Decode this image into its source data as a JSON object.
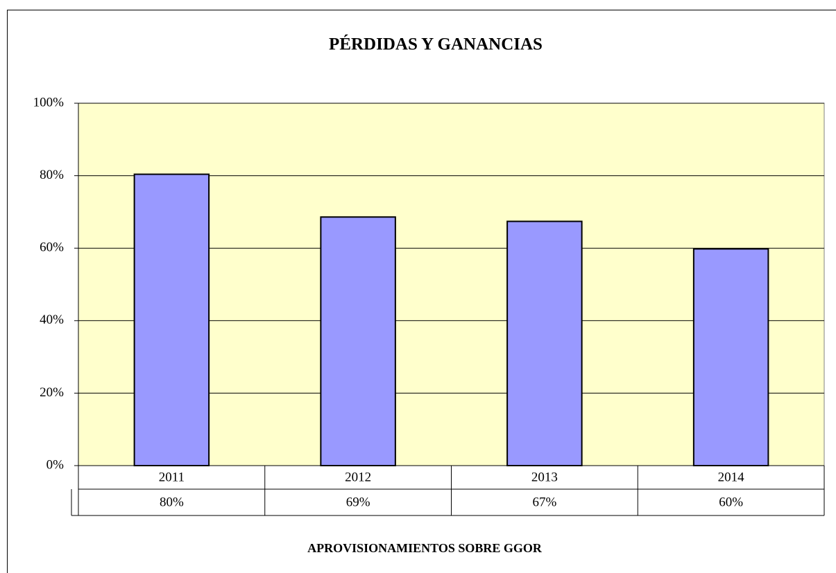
{
  "chart_data": {
    "type": "bar",
    "title": "PÉRDIDAS Y GANANCIAS",
    "x_label": "APROVISIONAMIENTOS SOBRE GGOR",
    "categories": [
      "2011",
      "2012",
      "2013",
      "2014"
    ],
    "values": [
      80.4,
      68.6,
      67.4,
      59.8
    ],
    "value_labels": [
      "80%",
      "69%",
      "67%",
      "60%"
    ],
    "color": "#9999ff",
    "ylim": [
      0,
      100
    ],
    "yticks": [
      {
        "value": 0,
        "label": "0%"
      },
      {
        "value": 20,
        "label": "20%"
      },
      {
        "value": 40,
        "label": "40%"
      },
      {
        "value": 60,
        "label": "60%"
      },
      {
        "value": 80,
        "label": "80%"
      },
      {
        "value": 100,
        "label": "100%"
      }
    ],
    "grid": true
  }
}
